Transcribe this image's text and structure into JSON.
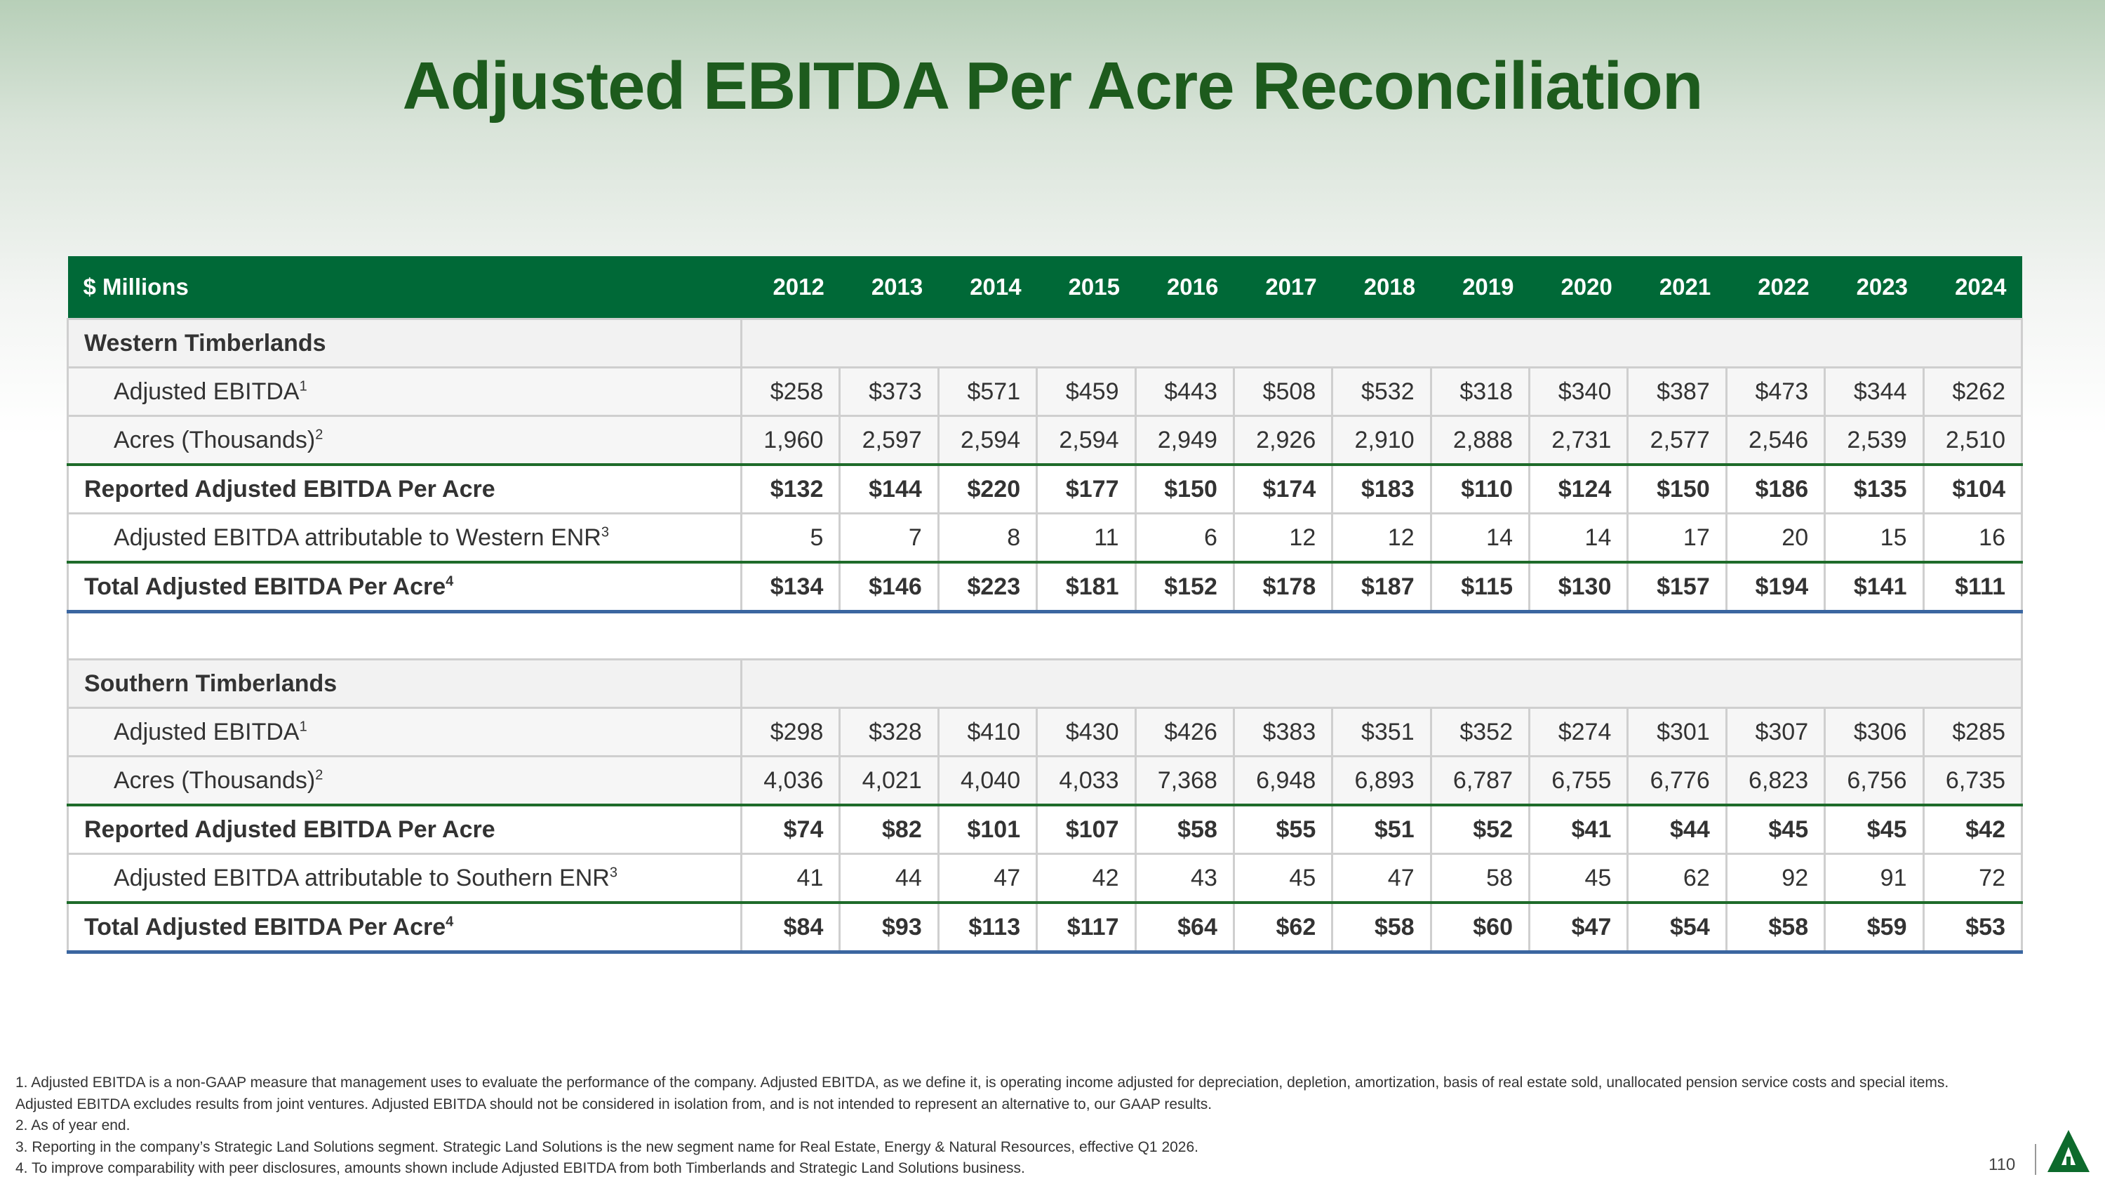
{
  "title": "Adjusted EBITDA Per Acre Reconciliation",
  "table": {
    "unit_label": "$ Millions",
    "years": [
      "2012",
      "2013",
      "2014",
      "2015",
      "2016",
      "2017",
      "2018",
      "2019",
      "2020",
      "2021",
      "2022",
      "2023",
      "2024"
    ],
    "rows": [
      {
        "type": "section",
        "label": "Western Timberlands",
        "sup": ""
      },
      {
        "type": "normal",
        "label": "Adjusted EBITDA",
        "sup": "1",
        "values": [
          "$258",
          "$373",
          "$571",
          "$459",
          "$443",
          "$508",
          "$532",
          "$318",
          "$340",
          "$387",
          "$473",
          "$344",
          "$262"
        ]
      },
      {
        "type": "normal",
        "label": "Acres (Thousands)",
        "sup": "2",
        "values": [
          "1,960",
          "2,597",
          "2,594",
          "2,594",
          "2,949",
          "2,926",
          "2,910",
          "2,888",
          "2,731",
          "2,577",
          "2,546",
          "2,539",
          "2,510"
        ]
      },
      {
        "type": "reported",
        "label": "Reported Adjusted EBITDA Per Acre",
        "sup": "",
        "values": [
          "$132",
          "$144",
          "$220",
          "$177",
          "$150",
          "$174",
          "$183",
          "$110",
          "$124",
          "$150",
          "$186",
          "$135",
          "$104"
        ]
      },
      {
        "type": "normal-white",
        "label": "Adjusted EBITDA attributable to Western ENR",
        "sup": "3",
        "values": [
          "5",
          "7",
          "8",
          "11",
          "6",
          "12",
          "12",
          "14",
          "14",
          "17",
          "20",
          "15",
          "16"
        ]
      },
      {
        "type": "total",
        "label": "Total Adjusted EBITDA Per Acre",
        "sup": "4",
        "values": [
          "$134",
          "$146",
          "$223",
          "$181",
          "$152",
          "$178",
          "$187",
          "$115",
          "$130",
          "$157",
          "$194",
          "$141",
          "$111"
        ]
      },
      {
        "type": "spacer"
      },
      {
        "type": "section",
        "label": "Southern Timberlands",
        "sup": ""
      },
      {
        "type": "normal",
        "label": "Adjusted EBITDA",
        "sup": "1",
        "values": [
          "$298",
          "$328",
          "$410",
          "$430",
          "$426",
          "$383",
          "$351",
          "$352",
          "$274",
          "$301",
          "$307",
          "$306",
          "$285"
        ]
      },
      {
        "type": "normal",
        "label": "Acres (Thousands)",
        "sup": "2",
        "values": [
          "4,036",
          "4,021",
          "4,040",
          "4,033",
          "7,368",
          "6,948",
          "6,893",
          "6,787",
          "6,755",
          "6,776",
          "6,823",
          "6,756",
          "6,735"
        ]
      },
      {
        "type": "reported",
        "label": "Reported Adjusted EBITDA Per Acre",
        "sup": "",
        "values": [
          "$74",
          "$82",
          "$101",
          "$107",
          "$58",
          "$55",
          "$51",
          "$52",
          "$41",
          "$44",
          "$45",
          "$45",
          "$42"
        ]
      },
      {
        "type": "normal-white",
        "label": "Adjusted EBITDA attributable to Southern ENR",
        "sup": "3",
        "values": [
          "41",
          "44",
          "47",
          "42",
          "43",
          "45",
          "47",
          "58",
          "45",
          "62",
          "92",
          "91",
          "72"
        ]
      },
      {
        "type": "total",
        "label": "Total Adjusted EBITDA Per Acre",
        "sup": "4",
        "values": [
          "$84",
          "$93",
          "$113",
          "$117",
          "$64",
          "$62",
          "$58",
          "$60",
          "$47",
          "$54",
          "$58",
          "$59",
          "$53"
        ]
      }
    ]
  },
  "footnotes": [
    "1. Adjusted EBITDA is a non-GAAP measure that management uses to evaluate the performance of the company. Adjusted EBITDA, as we define it, is operating income adjusted for depreciation, depletion, amortization, basis of real estate sold, unallocated pension service costs and special items. Adjusted EBITDA excludes results from joint ventures. Adjusted EBITDA should not be considered in isolation from, and is not intended to represent an alternative to, our GAAP results.",
    "2. As of year end.",
    "3. Reporting in the company’s Strategic Land Solutions segment. Strategic Land Solutions is the new segment name for Real Estate, Energy & Natural Resources, effective Q1 2026.",
    "4. To improve comparability with peer disclosures, amounts shown include Adjusted EBITDA from both Timberlands and Strategic Land Solutions business."
  ],
  "page_number": "110",
  "colors": {
    "header_bg": "#006937",
    "title": "#1d5b1d",
    "accent_line": "#1e6b2a",
    "total_line": "#3b66a0"
  }
}
